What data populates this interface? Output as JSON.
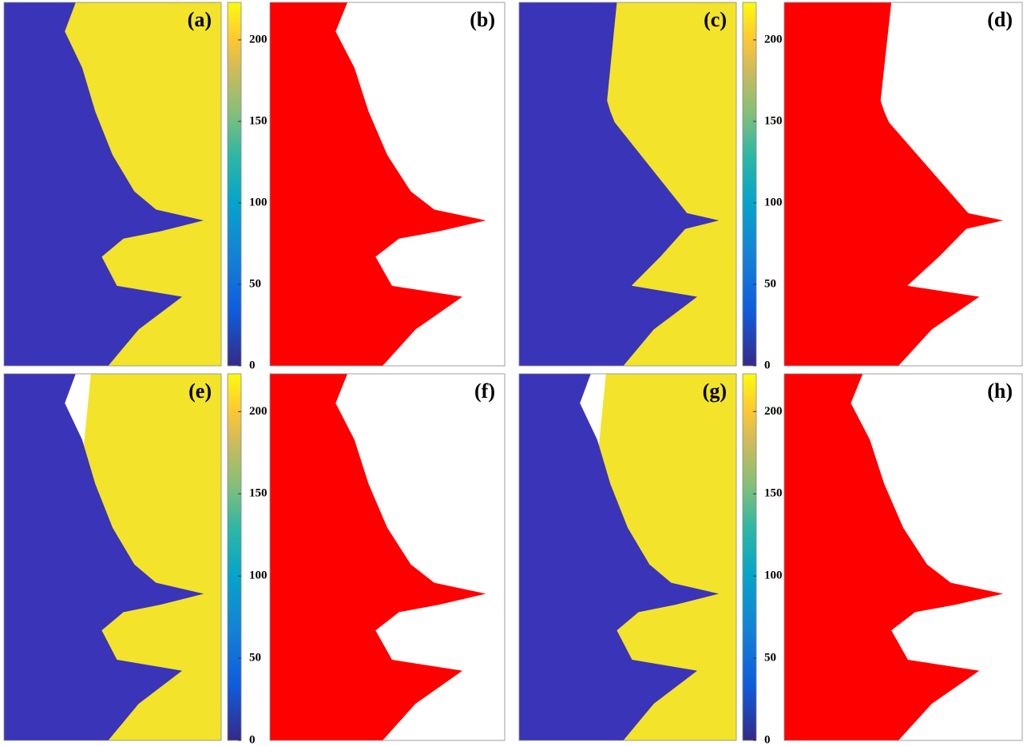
{
  "panels": [
    {
      "label": "(a)"
    },
    {
      "label": "(b)"
    },
    {
      "label": "(c)"
    },
    {
      "label": "(d)"
    },
    {
      "label": "(e)"
    },
    {
      "label": "(f)"
    },
    {
      "label": "(g)"
    },
    {
      "label": "(h)"
    }
  ],
  "colorbars": [
    {
      "panel": "(a)",
      "ylim": [
        0,
        223
      ],
      "yticks": [
        0,
        50,
        100,
        150,
        200
      ]
    },
    {
      "panel": "(c)",
      "ylim": [
        0,
        223
      ],
      "yticks": [
        0,
        50,
        100,
        150,
        200
      ]
    },
    {
      "panel": "(e)",
      "ylim": [
        0,
        223
      ],
      "yticks": [
        0,
        50,
        100,
        150,
        200
      ]
    },
    {
      "panel": "(g)",
      "ylim": [
        0,
        223
      ],
      "yticks": [
        0,
        50,
        100,
        150,
        200
      ]
    }
  ]
}
